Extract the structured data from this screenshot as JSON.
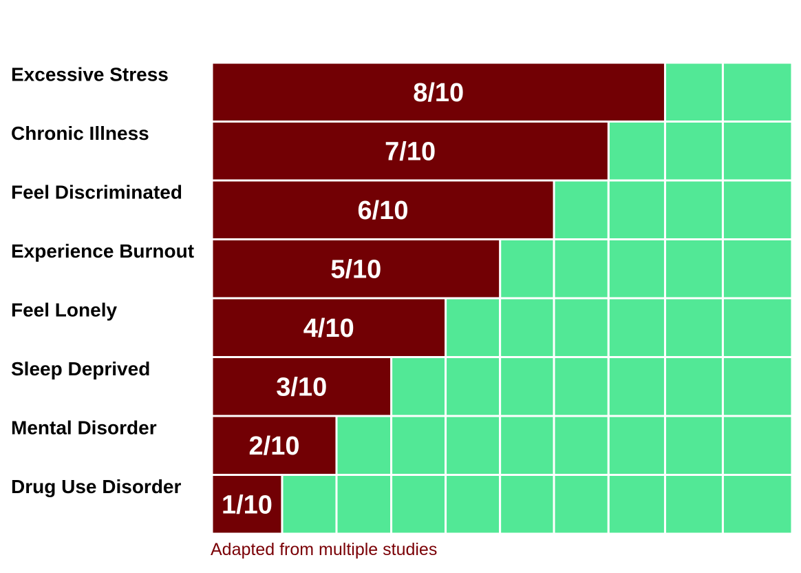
{
  "chart_data": {
    "type": "bar",
    "orientation": "horizontal",
    "categories": [
      "Excessive Stress",
      "Chronic Illness",
      "Feel Discriminated",
      "Experience Burnout",
      "Feel Lonely",
      "Sleep Deprived",
      "Mental Disorder",
      "Drug Use Disorder"
    ],
    "values": [
      8,
      7,
      6,
      5,
      4,
      3,
      2,
      1
    ],
    "labels": [
      "8/10",
      "7/10",
      "6/10",
      "5/10",
      "4/10",
      "3/10",
      "2/10",
      "1/10"
    ],
    "xlim": [
      0,
      10
    ],
    "grid": true,
    "caption": "Adapted from multiple studies"
  },
  "colors": {
    "bar": "#720004",
    "background_cell": "#52e896",
    "cell_border": "#ffffff",
    "caption": "#7a0006"
  }
}
